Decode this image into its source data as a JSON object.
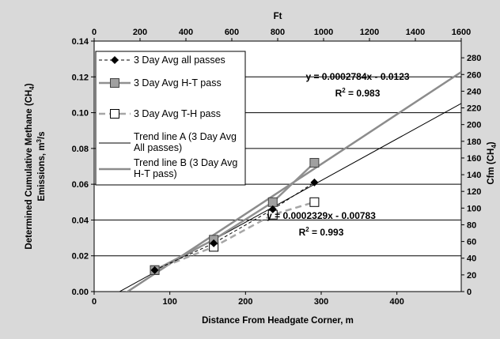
{
  "chart_data": {
    "type": "scatter",
    "xlabel": "Distance From Headgate Corner, m",
    "ylabel_line1": "Determined Cumulative Methane (CH",
    "ylabel_sub": "4",
    "ylabel_line1_end": ")",
    "ylabel_line2": "Emissions, m",
    "ylabel_line2_sup": "3",
    "ylabel_line2_end": "/s",
    "x2label": "Ft",
    "y2label": "Cfm (CH",
    "y2label_sub": "4",
    "y2label_end": ")",
    "xlim": [
      0,
      485
    ],
    "ylim": [
      0,
      0.14
    ],
    "x2lim": [
      0,
      1600
    ],
    "y2lim": [
      0,
      300
    ],
    "x_ticks": [
      "0",
      "100",
      "200",
      "300",
      "400"
    ],
    "x_tick_values": [
      0,
      100,
      200,
      300,
      400
    ],
    "y_ticks": [
      "0.00",
      "0.02",
      "0.04",
      "0.06",
      "0.08",
      "0.10",
      "0.12",
      "0.14"
    ],
    "y_tick_values": [
      0,
      0.02,
      0.04,
      0.06,
      0.08,
      0.1,
      0.12,
      0.14
    ],
    "x2_ticks": [
      "0",
      "200",
      "400",
      "600",
      "800",
      "1000",
      "1200",
      "1400",
      "1600"
    ],
    "x2_tick_values": [
      0,
      200,
      400,
      600,
      800,
      1000,
      1200,
      1400,
      1600
    ],
    "y2_ticks": [
      "0",
      "20",
      "40",
      "60",
      "80",
      "100",
      "120",
      "140",
      "160",
      "180",
      "200",
      "220",
      "240",
      "260",
      "280"
    ],
    "y2_tick_values": [
      0,
      20,
      40,
      60,
      80,
      100,
      120,
      140,
      160,
      180,
      200,
      220,
      240,
      260,
      280
    ],
    "gridlines_y": true,
    "series": [
      {
        "name": "3 Day Avg all passes",
        "style": "dashed-black-diamond",
        "color": "#000000",
        "points": [
          [
            80,
            0.012
          ],
          [
            158,
            0.027
          ],
          [
            236,
            0.046
          ],
          [
            291,
            0.061
          ]
        ]
      },
      {
        "name": "3 Day Avg H-T pass",
        "style": "solid-gray-square",
        "color": "#808080",
        "points": [
          [
            80,
            0.012
          ],
          [
            158,
            0.029
          ],
          [
            236,
            0.05
          ],
          [
            291,
            0.072
          ]
        ]
      },
      {
        "name": "3 Day Avg T-H pass",
        "style": "dashed-gray-open-square",
        "color": "#a6a6a6",
        "points": [
          [
            80,
            0.012
          ],
          [
            158,
            0.025
          ],
          [
            236,
            0.043
          ],
          [
            291,
            0.05
          ]
        ]
      }
    ],
    "trend_lines": [
      {
        "name": "Trend line A (3 Day Avg All passes)",
        "legend_lines": [
          "Trend line A (3 Day Avg",
          "All passes)"
        ],
        "slope": 0.0002329,
        "intercept": -0.00783,
        "color": "#000000",
        "width": 1
      },
      {
        "name": "Trend line B (3 Day Avg H-T pass)",
        "legend_lines": [
          "Trend line B (3 Day Avg",
          "H-T pass)"
        ],
        "slope": 0.0002784,
        "intercept": -0.0123,
        "color": "#8c8c8c",
        "width": 2.5
      }
    ],
    "annotations": [
      {
        "eq": "y = 0.0002784x - 0.0123",
        "r2_label": "R",
        "r2_sup": "2",
        "r2_value": " = 0.983"
      },
      {
        "eq": "y = 0.0002329x - 0.00783",
        "r2_label": "R",
        "r2_sup": "2",
        "r2_value": " = 0.993"
      }
    ]
  }
}
